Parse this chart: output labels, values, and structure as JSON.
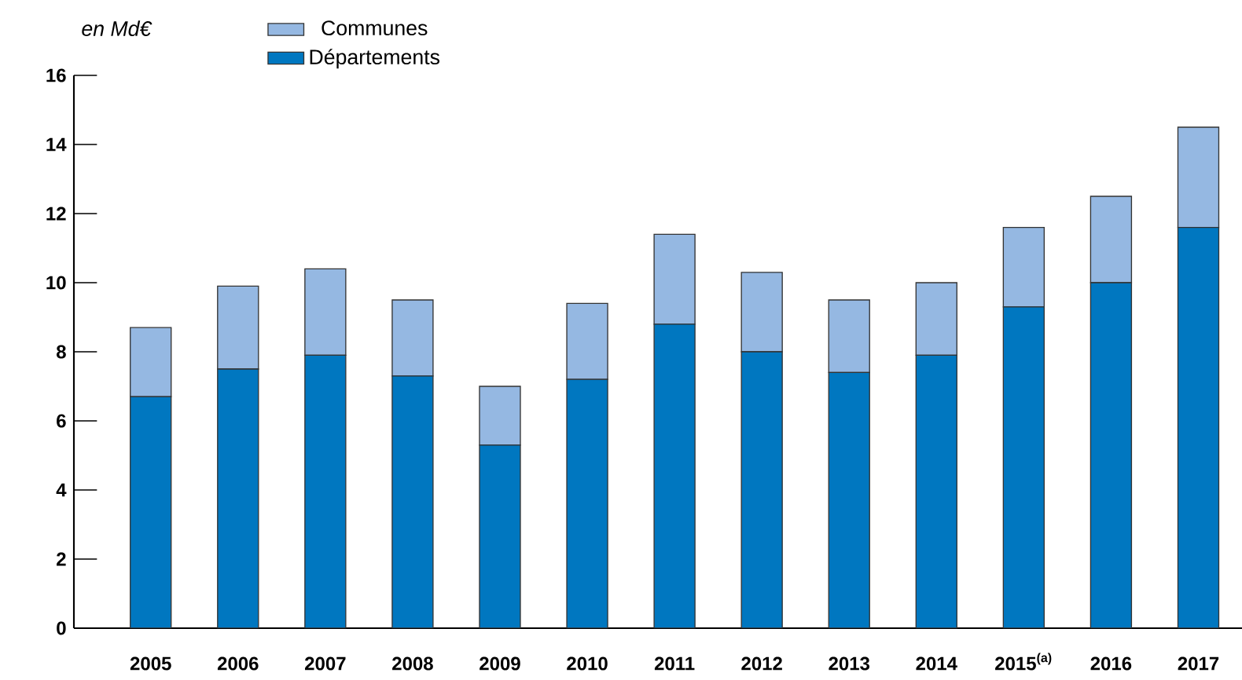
{
  "chart_data": {
    "type": "bar",
    "stacked": true,
    "ylabel": "en Md€",
    "categories": [
      "2005",
      "2006",
      "2007",
      "2008",
      "2009",
      "2010",
      "2011",
      "2012",
      "2013",
      "2014",
      "2015$^{(a)}$",
      "2016",
      "2017"
    ],
    "series": [
      {
        "name": "Départements",
        "color": "#0077c0",
        "values": [
          6.7,
          7.5,
          7.9,
          7.3,
          5.3,
          7.2,
          8.8,
          8.0,
          7.4,
          7.9,
          9.3,
          10.0,
          11.6
        ]
      },
      {
        "name": "Communes",
        "color": "#95b8e2",
        "values": [
          2.0,
          2.4,
          2.5,
          2.2,
          1.7,
          2.2,
          2.6,
          2.3,
          2.1,
          2.1,
          2.3,
          2.5,
          2.9
        ]
      }
    ],
    "ylim": [
      0,
      16
    ],
    "yticks": [
      0,
      2,
      4,
      6,
      8,
      10,
      12,
      14,
      16
    ],
    "legend": "top"
  }
}
